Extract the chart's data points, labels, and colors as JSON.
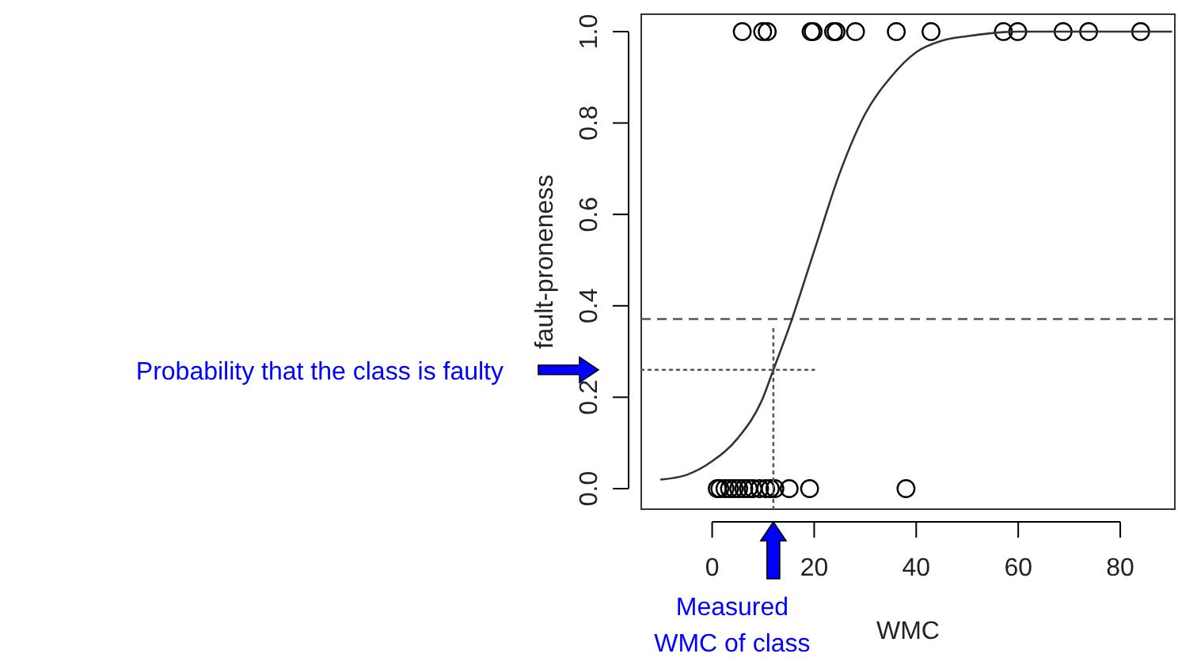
{
  "chart_data": {
    "type": "scatter",
    "xlabel": "WMC",
    "ylabel": "fault-proneness",
    "xlim": [
      -13.9,
      90.7
    ],
    "ylim": [
      -0.045,
      1.038
    ],
    "xticks": [
      0,
      20,
      40,
      60,
      80
    ],
    "yticks": [
      {
        "value": 0,
        "label": "0.0"
      },
      {
        "value": 0.2,
        "label": "0.2"
      },
      {
        "value": 0.4,
        "label": "0.4"
      },
      {
        "value": 0.6,
        "label": "0.6"
      },
      {
        "value": 0.8,
        "label": "0.8"
      },
      {
        "value": 1,
        "label": "1.0"
      }
    ],
    "grid": false,
    "series": [
      {
        "color": "#000000",
        "marker": "circle",
        "x": [
          5.9,
          9.9,
          10.8,
          19.4,
          19.8,
          23.8,
          24.3,
          28.1,
          36.1,
          42.9,
          57.1,
          59.9,
          68.8,
          73.8,
          84,
          1,
          1.5,
          2.5,
          3.4,
          4.3,
          5.2,
          6.2,
          7.1,
          8,
          9.3,
          10.5,
          11.4,
          12.3,
          15.1,
          19.1,
          38
        ],
        "values": [
          1,
          1,
          1,
          1,
          1,
          1,
          1,
          1,
          1,
          1,
          1,
          1,
          1,
          1,
          1,
          0,
          0,
          0,
          0,
          0,
          0,
          0,
          0,
          0,
          0,
          0,
          0,
          0,
          0,
          0,
          0
        ]
      },
      {
        "type": "line",
        "color": "#333333",
        "marker": "none",
        "line_style": "solid",
        "x": [
          -10,
          -5,
          0,
          5,
          10,
          12,
          15,
          20,
          25,
          30,
          35,
          40,
          45,
          50,
          60,
          70,
          90
        ],
        "values": [
          0.02,
          0.03,
          0.06,
          0.11,
          0.2,
          0.26,
          0.35,
          0.52,
          0.69,
          0.82,
          0.9,
          0.955,
          0.98,
          0.99,
          1,
          1,
          1
        ]
      },
      {
        "type": "line",
        "color": "#555555",
        "marker": "none",
        "line_style": "dotted",
        "x": [
          -13.9,
          20
        ],
        "values": [
          0.26,
          0.26
        ]
      },
      {
        "type": "line",
        "color": "#555555",
        "marker": "none",
        "line_style": "dotted",
        "x": [
          12,
          12
        ],
        "values": [
          -0.045,
          0.35
        ]
      }
    ],
    "ref_lines": [
      {
        "axis": "y",
        "value": 0.371,
        "color": "#555555",
        "line_style": "dashed"
      }
    ],
    "annotations": [
      "Probability that the class is faulty",
      "Measured WMC of class"
    ]
  }
}
